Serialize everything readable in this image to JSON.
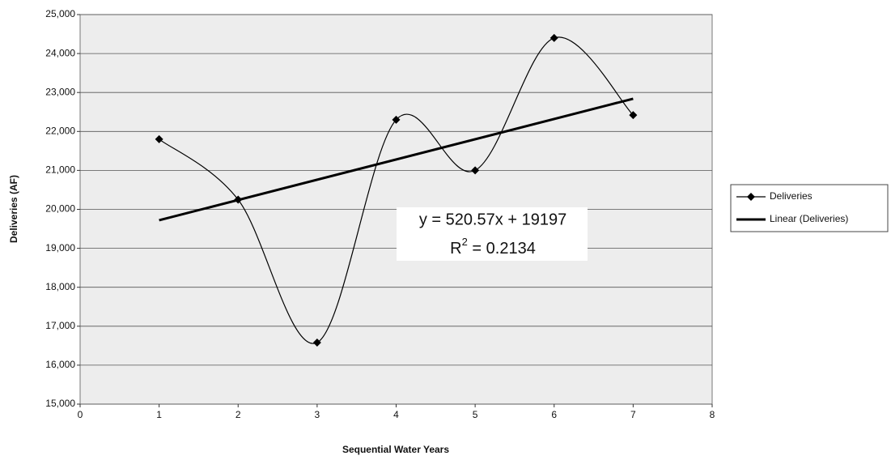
{
  "chart_data": {
    "type": "scatter",
    "x_label": "Sequential Water Years",
    "y_label": "Deliveries (AF)",
    "xlim": [
      0,
      8
    ],
    "xticks": [
      0,
      1,
      2,
      3,
      4,
      5,
      6,
      7,
      8
    ],
    "ylim": [
      15000,
      25000
    ],
    "yticks": [
      {
        "value": 15000,
        "label": "15,000"
      },
      {
        "value": 16000,
        "label": "16,000"
      },
      {
        "value": 17000,
        "label": "17,000"
      },
      {
        "value": 18000,
        "label": "18,000"
      },
      {
        "value": 19000,
        "label": "19,000"
      },
      {
        "value": 20000,
        "label": "20,000"
      },
      {
        "value": 21000,
        "label": "21,000"
      },
      {
        "value": 22000,
        "label": "22,000"
      },
      {
        "value": 23000,
        "label": "23,000"
      },
      {
        "value": 24000,
        "label": "24,000"
      },
      {
        "value": 25000,
        "label": "25,000"
      }
    ],
    "grid": true,
    "legend": "right",
    "series": [
      {
        "name": "Deliveries",
        "color": "#000000",
        "smooth": true,
        "marker": "diamond",
        "x": [
          1,
          2,
          3,
          4,
          5,
          6,
          7
        ],
        "values": [
          21800,
          20250,
          16580,
          22300,
          21000,
          24400,
          22420
        ]
      },
      {
        "name": "Linear (Deliveries)",
        "color": "#000000",
        "smooth": false,
        "marker": "none",
        "x": [
          1,
          7
        ],
        "values": [
          19720,
          22840
        ]
      }
    ],
    "annotation": {
      "equation": "y = 520.57x + 19197",
      "r_squared": {
        "base": "R",
        "sup": "2",
        "rest": " = 0.2134"
      }
    }
  }
}
